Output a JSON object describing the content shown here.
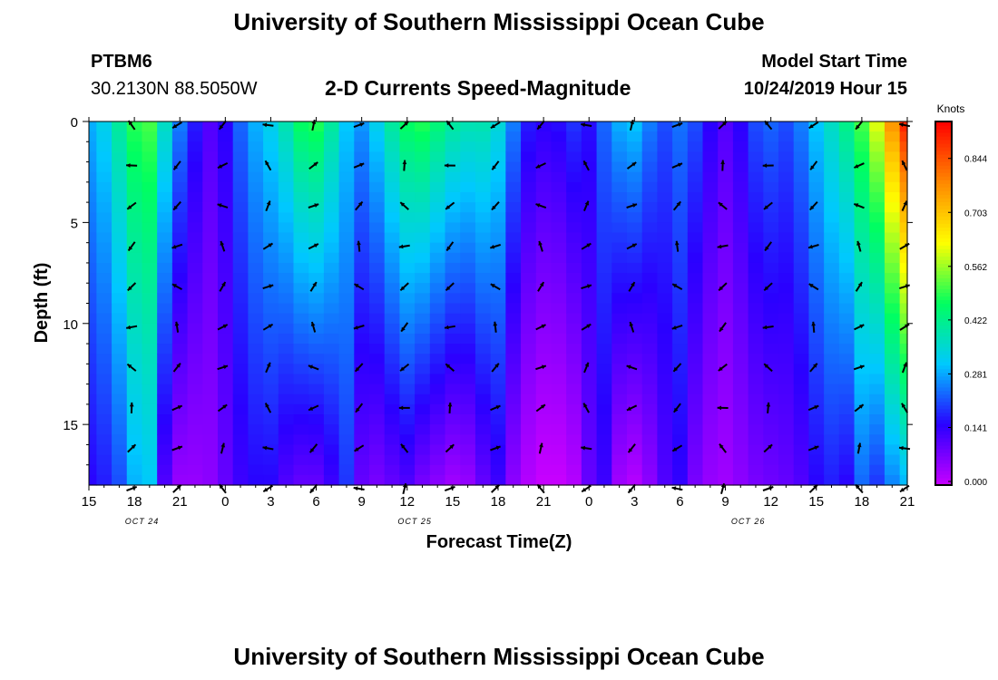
{
  "header": {
    "title": "University of Southern Mississippi Ocean Cube",
    "station_id": "PTBM6",
    "station_coords": "30.2130N 88.5050W",
    "chart_title": "2-D Currents Speed-Magnitude",
    "model_label": "Model Start Time",
    "model_time": "10/24/2019 Hour 15"
  },
  "footer": {
    "title": "University of Southern Mississippi Ocean Cube"
  },
  "chart_data": {
    "type": "heatmap",
    "title": "2-D Currents Speed-Magnitude",
    "xlabel": "Forecast Time(Z)",
    "ylabel": "Depth (ft)",
    "x_range_hours": [
      15,
      69
    ],
    "y_range_ft": [
      0,
      18
    ],
    "x_tick_labels": [
      "15",
      "18",
      "21",
      "0",
      "3",
      "6",
      "9",
      "12",
      "15",
      "18",
      "21",
      "0",
      "3",
      "6",
      "9",
      "12",
      "15",
      "18",
      "21"
    ],
    "y_tick_labels": [
      "0",
      "5",
      "10",
      "15"
    ],
    "date_labels": [
      {
        "label": "OCT 24",
        "hour": 18.5
      },
      {
        "label": "OCT 25",
        "hour": 36.5
      },
      {
        "label": "OCT 26",
        "hour": 58.5
      }
    ],
    "colorbar": {
      "title": "Knots",
      "tick_labels": [
        "0.000",
        "0.141",
        "0.281",
        "0.422",
        "0.562",
        "0.703",
        "0.844"
      ],
      "min": 0.0,
      "max": 0.95,
      "colors": [
        "#c800ff",
        "#2a00ff",
        "#00c8ff",
        "#00ff60",
        "#ffff00",
        "#ff8800",
        "#ff0000"
      ]
    },
    "speed_columns": [
      {
        "hour": 15,
        "top": 0.3,
        "bottom": 0.16
      },
      {
        "hour": 16,
        "top": 0.34,
        "bottom": 0.18
      },
      {
        "hour": 17,
        "top": 0.42,
        "bottom": 0.22
      },
      {
        "hour": 18,
        "top": 0.5,
        "bottom": 0.3
      },
      {
        "hour": 19,
        "top": 0.52,
        "bottom": 0.32
      },
      {
        "hour": 20,
        "top": 0.38,
        "bottom": 0.12
      },
      {
        "hour": 21,
        "top": 0.26,
        "bottom": 0.05
      },
      {
        "hour": 22,
        "top": 0.18,
        "bottom": 0.05
      },
      {
        "hour": 23,
        "top": 0.12,
        "bottom": 0.06
      },
      {
        "hour": 24,
        "top": 0.16,
        "bottom": 0.1
      },
      {
        "hour": 25,
        "top": 0.24,
        "bottom": 0.14
      },
      {
        "hour": 26,
        "top": 0.3,
        "bottom": 0.16
      },
      {
        "hour": 27,
        "top": 0.34,
        "bottom": 0.16
      },
      {
        "hour": 28,
        "top": 0.4,
        "bottom": 0.12
      },
      {
        "hour": 29,
        "top": 0.48,
        "bottom": 0.1
      },
      {
        "hour": 30,
        "top": 0.5,
        "bottom": 0.1
      },
      {
        "hour": 31,
        "top": 0.42,
        "bottom": 0.14
      },
      {
        "hour": 32,
        "top": 0.32,
        "bottom": 0.2
      },
      {
        "hour": 33,
        "top": 0.28,
        "bottom": 0.1
      },
      {
        "hour": 34,
        "top": 0.34,
        "bottom": 0.08
      },
      {
        "hour": 35,
        "top": 0.42,
        "bottom": 0.1
      },
      {
        "hour": 36,
        "top": 0.48,
        "bottom": 0.12
      },
      {
        "hour": 37,
        "top": 0.5,
        "bottom": 0.08
      },
      {
        "hour": 38,
        "top": 0.46,
        "bottom": 0.06
      },
      {
        "hour": 39,
        "top": 0.42,
        "bottom": 0.04
      },
      {
        "hour": 40,
        "top": 0.4,
        "bottom": 0.05
      },
      {
        "hour": 41,
        "top": 0.4,
        "bottom": 0.1
      },
      {
        "hour": 42,
        "top": 0.36,
        "bottom": 0.14
      },
      {
        "hour": 43,
        "top": 0.26,
        "bottom": 0.06
      },
      {
        "hour": 44,
        "top": 0.18,
        "bottom": 0.02
      },
      {
        "hour": 45,
        "top": 0.16,
        "bottom": 0.0
      },
      {
        "hour": 46,
        "top": 0.17,
        "bottom": 0.0
      },
      {
        "hour": 47,
        "top": 0.2,
        "bottom": 0.02
      },
      {
        "hour": 48,
        "top": 0.17,
        "bottom": 0.1
      },
      {
        "hour": 49,
        "top": 0.24,
        "bottom": 0.14
      },
      {
        "hour": 50,
        "top": 0.3,
        "bottom": 0.04
      },
      {
        "hour": 51,
        "top": 0.32,
        "bottom": 0.02
      },
      {
        "hour": 52,
        "top": 0.26,
        "bottom": 0.06
      },
      {
        "hour": 53,
        "top": 0.22,
        "bottom": 0.12
      },
      {
        "hour": 54,
        "top": 0.25,
        "bottom": 0.15
      },
      {
        "hour": 55,
        "top": 0.22,
        "bottom": 0.08
      },
      {
        "hour": 56,
        "top": 0.16,
        "bottom": 0.05
      },
      {
        "hour": 57,
        "top": 0.12,
        "bottom": 0.04
      },
      {
        "hour": 58,
        "top": 0.16,
        "bottom": 0.06
      },
      {
        "hour": 59,
        "top": 0.22,
        "bottom": 0.08
      },
      {
        "hour": 60,
        "top": 0.24,
        "bottom": 0.09
      },
      {
        "hour": 61,
        "top": 0.22,
        "bottom": 0.1
      },
      {
        "hour": 62,
        "top": 0.26,
        "bottom": 0.12
      },
      {
        "hour": 63,
        "top": 0.32,
        "bottom": 0.16
      },
      {
        "hour": 64,
        "top": 0.38,
        "bottom": 0.18
      },
      {
        "hour": 65,
        "top": 0.44,
        "bottom": 0.16
      },
      {
        "hour": 66,
        "top": 0.52,
        "bottom": 0.24
      },
      {
        "hour": 67,
        "top": 0.62,
        "bottom": 0.2
      },
      {
        "hour": 68,
        "top": 0.78,
        "bottom": 0.26
      },
      {
        "hour": 69,
        "top": 0.92,
        "bottom": 0.3
      }
    ],
    "vector_hours": [
      18,
      21,
      24,
      27,
      30,
      33,
      36,
      39,
      42,
      45,
      48,
      51,
      54,
      57,
      60,
      63,
      66,
      69
    ],
    "vector_depths_ft": [
      0,
      2,
      4,
      6,
      8,
      10,
      12,
      14,
      16,
      18
    ]
  }
}
